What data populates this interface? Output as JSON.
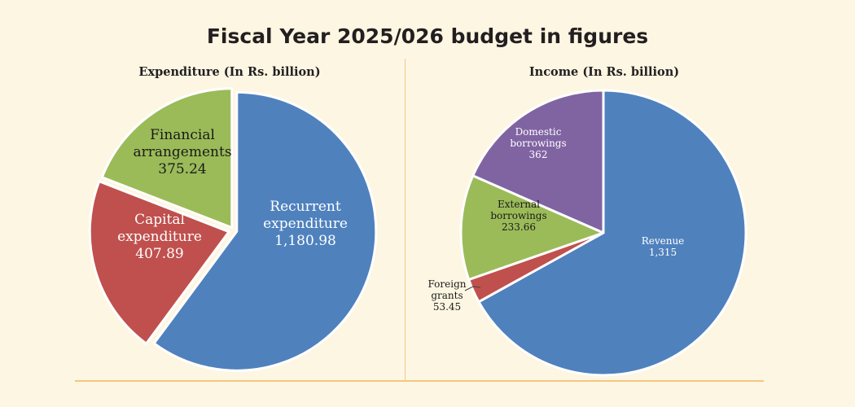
{
  "title": "Fiscal Year 2025/026 budget in figures",
  "chart_data": [
    {
      "type": "pie",
      "title": "Expenditure (In Rs. billion)",
      "slices": [
        {
          "label_lines": [
            "Recurrent",
            "expenditure"
          ],
          "value": 1180.98,
          "value_label": "1,180.98",
          "color": "#4f81bd",
          "text_color": "#ffffff"
        },
        {
          "label_lines": [
            "Capital",
            "expenditure"
          ],
          "value": 407.89,
          "value_label": "407.89",
          "color": "#c0504d",
          "text_color": "#ffffff"
        },
        {
          "label_lines": [
            "Financial",
            "arrangements"
          ],
          "value": 375.24,
          "value_label": "375.24",
          "color": "#9bbb59",
          "text_color": "#1a1a1a"
        }
      ]
    },
    {
      "type": "pie",
      "title": "Income (In Rs. billion)",
      "slices": [
        {
          "label_lines": [
            "Revenue"
          ],
          "value": 1315,
          "value_label": "1,315",
          "color": "#4f81bd",
          "text_color": "#ffffff"
        },
        {
          "label_lines": [
            "Foreign",
            "grants"
          ],
          "value": 53.45,
          "value_label": "53.45",
          "color": "#c0504d",
          "text_color": "#1a1a1a"
        },
        {
          "label_lines": [
            "External",
            "borrowings"
          ],
          "value": 233.66,
          "value_label": "233.66",
          "color": "#9bbb59",
          "text_color": "#1a1a1a"
        },
        {
          "label_lines": [
            "Domestic",
            "borrowings"
          ],
          "value": 362,
          "value_label": "362",
          "color": "#8064a2",
          "text_color": "#ffffff"
        }
      ]
    }
  ]
}
